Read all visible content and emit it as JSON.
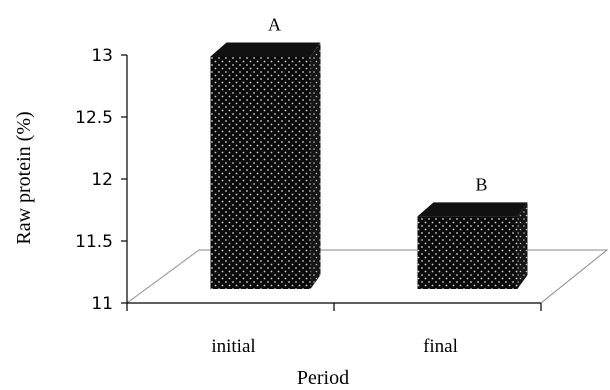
{
  "chart_data": {
    "type": "bar",
    "style": "3d",
    "categories": [
      "initial",
      "final"
    ],
    "values": [
      12.94,
      11.65
    ],
    "bar_labels": [
      "A",
      "B"
    ],
    "xlabel": "Period",
    "ylabel": "Raw protein (%)",
    "ylim": [
      11,
      13
    ],
    "yticks": [
      "11",
      "11.5",
      "12",
      "12.5",
      "13"
    ],
    "grid": false,
    "legend": "none",
    "colors": {
      "bar": "#0a0a0a",
      "bar_top": "#111111",
      "bar_side": "#1c1c1c",
      "dots": "#cfcfcf",
      "floor": "#888888",
      "axis": "#000000"
    }
  }
}
